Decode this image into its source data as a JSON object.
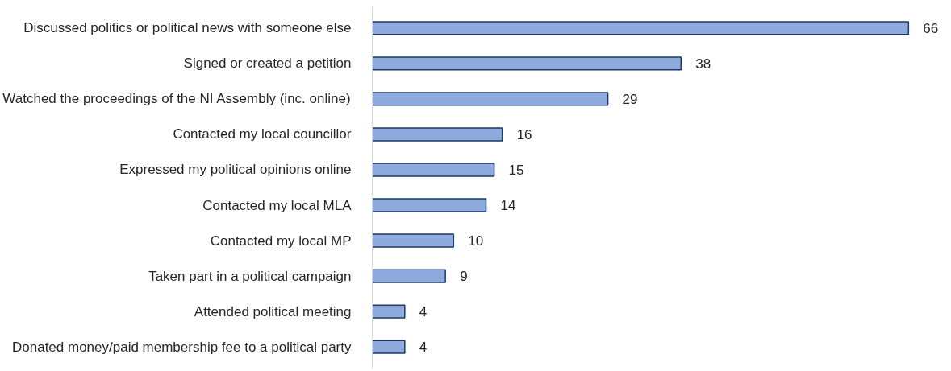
{
  "chart_data": {
    "type": "bar",
    "orientation": "horizontal",
    "categories": [
      "Discussed politics or political news with someone else",
      "Signed or created a petition",
      "Watched the proceedings of the NI Assembly (inc. online)",
      "Contacted my local councillor",
      "Expressed my political opinions online",
      "Contacted my local MLA",
      "Contacted my local MP",
      "Taken part in a political campaign",
      "Attended political meeting",
      "Donated money/paid membership fee to a political party"
    ],
    "values": [
      66,
      38,
      29,
      16,
      15,
      14,
      10,
      9,
      4,
      4
    ],
    "color": "#8faadc",
    "data_labels": true,
    "grid": false
  }
}
